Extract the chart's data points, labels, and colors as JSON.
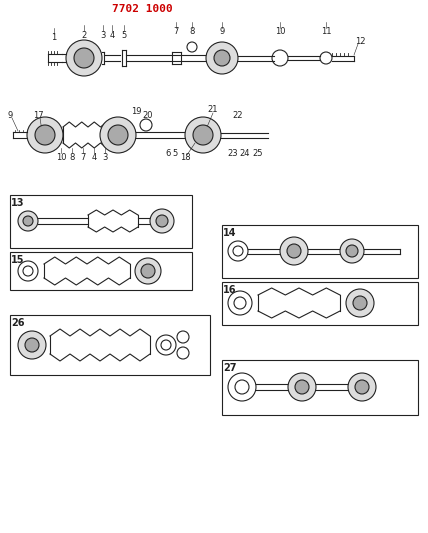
{
  "title": "7702 1000",
  "title_color": "#cc0000",
  "bg_color": "#ffffff",
  "diagram_color": "#222222",
  "fig_width": 4.28,
  "fig_height": 5.33,
  "dpi": 100
}
